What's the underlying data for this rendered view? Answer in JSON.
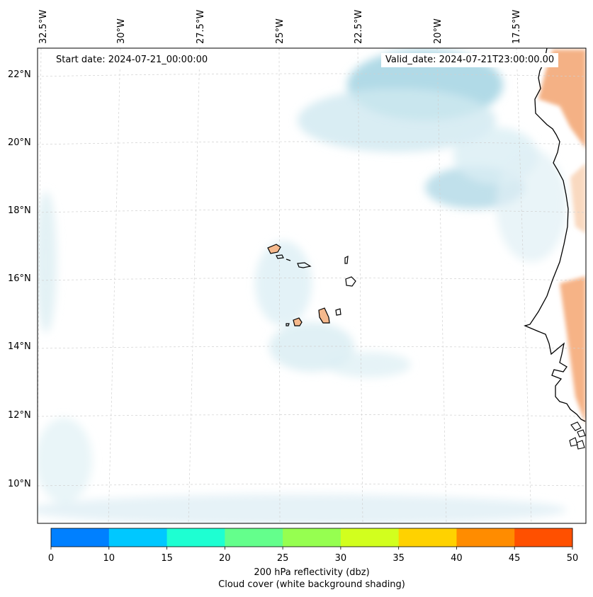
{
  "header": {
    "start_date": "Start date: 2024-07-21_00:00:00",
    "valid_date": "Valid_date: 2024-07-21T23:00:00.00"
  },
  "map": {
    "longitude_labels": [
      "32.5°W",
      "30°W",
      "27.5°W",
      "25°W",
      "22.5°W",
      "20°W",
      "17.5°W"
    ],
    "latitude_labels": [
      "22°N",
      "20°N",
      "18°N",
      "16°N",
      "14°N",
      "12°N",
      "10°N"
    ],
    "land_color": "#f5b98d",
    "cloud_color": "#b8dde8"
  },
  "colorbar": {
    "ticks": [
      "0",
      "10",
      "15",
      "20",
      "25",
      "30",
      "35",
      "40",
      "45",
      "50"
    ],
    "colors": [
      "#0080ff",
      "#00c8ff",
      "#1effd2",
      "#64ff8c",
      "#96ff50",
      "#d2ff1e",
      "#ffd200",
      "#ff8c00",
      "#ff5000"
    ],
    "label": "200 hPa reflectivity (dbz)",
    "sublabel": "Cloud cover (white background shading)"
  }
}
